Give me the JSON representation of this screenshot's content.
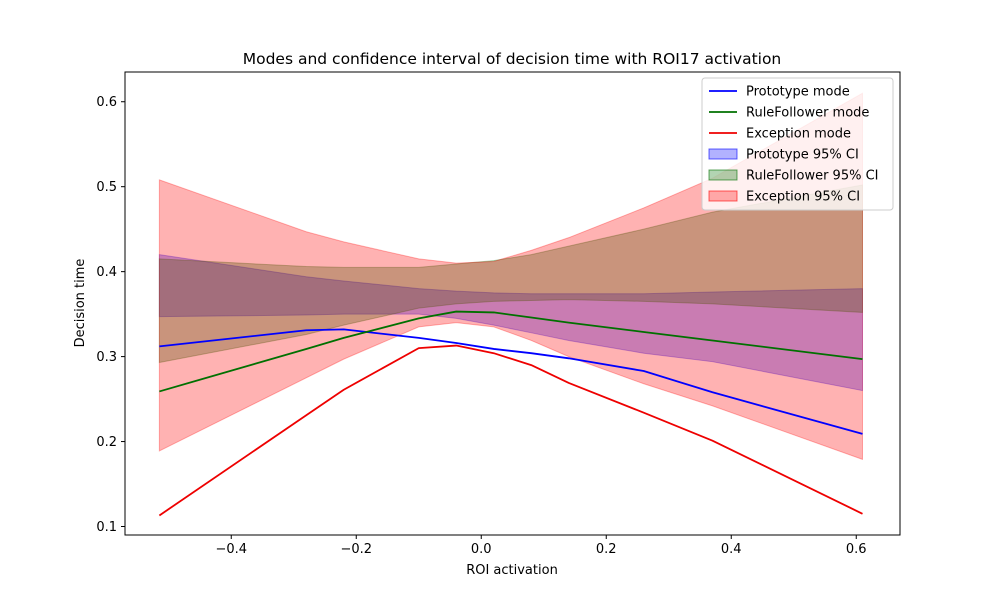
{
  "chart_data": {
    "type": "line",
    "title": "Modes and confidence interval of decision time with ROI17 activation",
    "xlabel": "ROI activation",
    "ylabel": "Decision time",
    "xlim": [
      -0.57,
      0.67
    ],
    "ylim": [
      0.09,
      0.635
    ],
    "xticks": [
      -0.4,
      -0.2,
      0.0,
      0.2,
      0.4,
      0.6
    ],
    "xtick_labels": [
      "−0.4",
      "−0.2",
      "0.0",
      "0.2",
      "0.4",
      "0.6"
    ],
    "yticks": [
      0.1,
      0.2,
      0.3,
      0.4,
      0.5,
      0.6
    ],
    "ytick_labels": [
      "0.1",
      "0.2",
      "0.3",
      "0.4",
      "0.5",
      "0.6"
    ],
    "grid": false,
    "legend_position": "top-right",
    "series": [
      {
        "name": "Prototype mode",
        "color": "#0000ff",
        "x": [
          -0.515,
          -0.28,
          -0.22,
          -0.1,
          -0.04,
          0.02,
          0.08,
          0.14,
          0.26,
          0.37,
          0.61
        ],
        "y": [
          0.312,
          0.331,
          0.332,
          0.322,
          0.316,
          0.309,
          0.304,
          0.298,
          0.283,
          0.258,
          0.209
        ]
      },
      {
        "name": "RuleFollower mode",
        "color": "#007000",
        "x": [
          -0.515,
          -0.28,
          -0.22,
          -0.1,
          -0.04,
          0.02,
          0.08,
          0.14,
          0.26,
          0.37,
          0.61
        ],
        "y": [
          0.259,
          0.309,
          0.322,
          0.345,
          0.353,
          0.352,
          0.346,
          0.34,
          0.329,
          0.319,
          0.297
        ]
      },
      {
        "name": "Exception mode",
        "color": "#ee0000",
        "x": [
          -0.515,
          -0.28,
          -0.22,
          -0.1,
          -0.04,
          0.02,
          0.08,
          0.14,
          0.26,
          0.37,
          0.61
        ],
        "y": [
          0.113,
          0.231,
          0.261,
          0.31,
          0.313,
          0.304,
          0.29,
          0.269,
          0.234,
          0.201,
          0.115
        ]
      }
    ],
    "bands": [
      {
        "name": "Prototype 95% CI",
        "color": "#0000ff",
        "opacity": 0.3,
        "x": [
          -0.515,
          -0.28,
          -0.22,
          -0.1,
          -0.04,
          0.02,
          0.08,
          0.14,
          0.26,
          0.37,
          0.61
        ],
        "lower": [
          0.347,
          0.349,
          0.35,
          0.35,
          0.345,
          0.337,
          0.328,
          0.319,
          0.304,
          0.294,
          0.26
        ],
        "upper": [
          0.42,
          0.394,
          0.389,
          0.38,
          0.377,
          0.375,
          0.374,
          0.374,
          0.374,
          0.376,
          0.38
        ]
      },
      {
        "name": "RuleFollower 95% CI",
        "color": "#007000",
        "opacity": 0.3,
        "x": [
          -0.515,
          -0.28,
          -0.22,
          -0.1,
          -0.04,
          0.02,
          0.08,
          0.14,
          0.26,
          0.37,
          0.61
        ],
        "lower": [
          0.293,
          0.326,
          0.337,
          0.357,
          0.362,
          0.365,
          0.366,
          0.367,
          0.365,
          0.362,
          0.352
        ],
        "upper": [
          0.415,
          0.406,
          0.405,
          0.405,
          0.409,
          0.413,
          0.42,
          0.43,
          0.45,
          0.47,
          0.502
        ]
      },
      {
        "name": "Exception 95% CI",
        "color": "#ff0000",
        "opacity": 0.3,
        "x": [
          -0.515,
          -0.28,
          -0.22,
          -0.1,
          -0.04,
          0.02,
          0.08,
          0.14,
          0.26,
          0.37,
          0.61
        ],
        "lower": [
          0.189,
          0.275,
          0.297,
          0.335,
          0.34,
          0.335,
          0.319,
          0.3,
          0.268,
          0.242,
          0.179
        ],
        "upper": [
          0.508,
          0.447,
          0.435,
          0.415,
          0.41,
          0.412,
          0.425,
          0.44,
          0.475,
          0.51,
          0.61
        ]
      }
    ]
  }
}
